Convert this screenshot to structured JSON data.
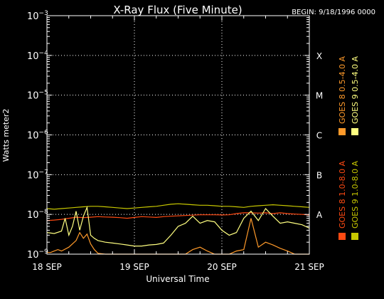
{
  "chart_data": {
    "type": "line",
    "title": "X-Ray Flux (Five Minute)",
    "begin_label": "BEGIN: 9/18/1996 0000",
    "xlabel": "Universal Time",
    "ylabel": "Watts meter2",
    "yscale": "log",
    "ylim": [
      1e-09,
      0.001
    ],
    "xlim": [
      0,
      72
    ],
    "x_unit": "hours since 18 SEP 1996 00:00 UT",
    "grid": true,
    "x_ticks": [
      {
        "x": 0,
        "label": "18 SEP"
      },
      {
        "x": 24,
        "label": "19 SEP"
      },
      {
        "x": 48,
        "label": "20 SEP"
      },
      {
        "x": 72,
        "label": "21 SEP"
      }
    ],
    "y_ticks": [
      {
        "exp": -3,
        "label": "10",
        "sup": "−3"
      },
      {
        "exp": -4,
        "label": "10",
        "sup": "−4"
      },
      {
        "exp": -5,
        "label": "10",
        "sup": "−5"
      },
      {
        "exp": -6,
        "label": "10",
        "sup": "−6"
      },
      {
        "exp": -7,
        "label": "10",
        "sup": "−7"
      },
      {
        "exp": -8,
        "label": "10",
        "sup": "−8"
      },
      {
        "exp": -9,
        "label": "10",
        "sup": "−9"
      }
    ],
    "class_labels": [
      {
        "exp": -4,
        "label": "X"
      },
      {
        "exp": -5,
        "label": "M"
      },
      {
        "exp": -6,
        "label": "C"
      },
      {
        "exp": -7,
        "label": "B"
      },
      {
        "exp": -8,
        "label": "A"
      }
    ],
    "series": [
      {
        "name": "GOES 8 1.0-8.0 A",
        "color": "#ff4a12",
        "x": [
          0,
          2,
          4,
          6,
          8,
          10,
          12,
          14,
          16,
          18,
          20,
          22,
          24,
          26,
          28,
          30,
          32,
          34,
          36,
          38,
          40,
          42,
          44,
          46,
          48,
          50,
          52,
          54,
          56,
          58,
          60,
          62,
          64,
          66,
          68,
          70,
          72
        ],
        "y": [
          7e-09,
          7.2e-09,
          7.5e-09,
          8e-09,
          8.5e-09,
          8.3e-09,
          8.5e-09,
          8.8e-09,
          8.6e-09,
          8.5e-09,
          8.3e-09,
          8e-09,
          8.4e-09,
          8.8e-09,
          8.6e-09,
          8.4e-09,
          8.8e-09,
          9e-09,
          9.2e-09,
          9.4e-09,
          9.6e-09,
          9.8e-09,
          9.8e-09,
          9.8e-09,
          9.7e-09,
          9.8e-09,
          1.05e-08,
          1.1e-08,
          1.1e-08,
          1.08e-08,
          1.1e-08,
          1.05e-08,
          1.1e-08,
          1.05e-08,
          1.02e-08,
          1e-08,
          9.7e-09
        ]
      },
      {
        "name": "GOES 8 0.5-4.0 A",
        "color": "#ff9a2a",
        "x": [
          0,
          1,
          2,
          3,
          4,
          6,
          8,
          9,
          10,
          11,
          12,
          13,
          14,
          16,
          18,
          20,
          22,
          24,
          26,
          28,
          30,
          32,
          34,
          36,
          38,
          40,
          42,
          44,
          46,
          48,
          50,
          52,
          54,
          56,
          58,
          60,
          62,
          64,
          66,
          68,
          70,
          72
        ],
        "y": [
          1.1e-09,
          1.1e-09,
          1.2e-09,
          1.3e-09,
          1.2e-09,
          1.5e-09,
          2.2e-09,
          3.5e-09,
          2.5e-09,
          3.2e-09,
          1.8e-09,
          1.3e-09,
          1.05e-09,
          8e-10,
          7e-10,
          7e-10,
          7.5e-10,
          7e-10,
          7e-10,
          7.5e-10,
          7.2e-10,
          7.5e-10,
          7.5e-10,
          7.2e-10,
          9e-10,
          1.3e-09,
          1.5e-09,
          1.2e-09,
          9e-10,
          8e-10,
          9e-10,
          1.2e-09,
          1.3e-09,
          8e-09,
          1.5e-09,
          2e-09,
          1.7e-09,
          1.4e-09,
          1.2e-09,
          1e-09,
          9e-10,
          8e-10
        ]
      },
      {
        "name": "GOES 9 1.0-8.0 A",
        "color": "#c8c800",
        "x": [
          0,
          2,
          4,
          6,
          8,
          10,
          12,
          14,
          16,
          18,
          20,
          22,
          24,
          26,
          28,
          30,
          32,
          34,
          36,
          38,
          40,
          42,
          44,
          46,
          48,
          50,
          52,
          54,
          56,
          58,
          60,
          62,
          64,
          66,
          68,
          70,
          72
        ],
        "y": [
          1.4e-08,
          1.35e-08,
          1.4e-08,
          1.45e-08,
          1.5e-08,
          1.55e-08,
          1.6e-08,
          1.6e-08,
          1.55e-08,
          1.5e-08,
          1.45e-08,
          1.4e-08,
          1.45e-08,
          1.5e-08,
          1.55e-08,
          1.6e-08,
          1.7e-08,
          1.8e-08,
          1.85e-08,
          1.8e-08,
          1.75e-08,
          1.7e-08,
          1.7e-08,
          1.65e-08,
          1.6e-08,
          1.6e-08,
          1.55e-08,
          1.5e-08,
          1.6e-08,
          1.65e-08,
          1.7e-08,
          1.75e-08,
          1.7e-08,
          1.65e-08,
          1.6e-08,
          1.55e-08,
          1.5e-08
        ]
      },
      {
        "name": "GOES 9 0.5-4.0 A",
        "color": "#ffff80",
        "x": [
          0,
          2,
          4,
          5,
          6,
          7,
          8,
          9,
          10,
          11,
          12,
          13,
          14,
          16,
          18,
          20,
          22,
          24,
          26,
          28,
          30,
          32,
          34,
          36,
          38,
          40,
          42,
          44,
          46,
          48,
          50,
          52,
          54,
          56,
          58,
          60,
          62,
          64,
          66,
          68,
          70,
          72
        ],
        "y": [
          3.5e-09,
          3.3e-09,
          3.8e-09,
          8e-09,
          3e-09,
          5e-09,
          1.2e-08,
          4e-09,
          9e-09,
          1.5e-08,
          3e-09,
          2.5e-09,
          2.2e-09,
          2e-09,
          1.9e-09,
          1.8e-09,
          1.7e-09,
          1.6e-09,
          1.6e-09,
          1.7e-09,
          1.75e-09,
          1.9e-09,
          3e-09,
          5e-09,
          6e-09,
          9e-09,
          6e-09,
          7e-09,
          6.5e-09,
          4e-09,
          3e-09,
          3.5e-09,
          8e-09,
          1.2e-08,
          7e-09,
          1.4e-08,
          9e-09,
          6e-09,
          6.5e-09,
          6e-09,
          5.5e-09,
          4.5e-09
        ]
      }
    ]
  }
}
